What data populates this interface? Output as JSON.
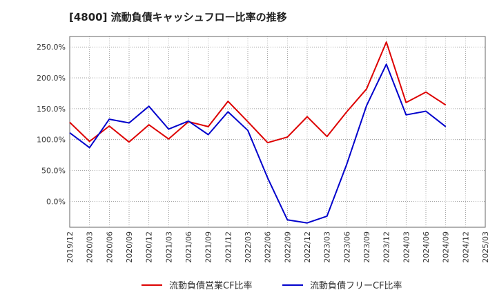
{
  "chart_data": {
    "type": "line",
    "title": "[4800]  流動負債キャッシュフロー比率の推移",
    "x": [
      "2019/12",
      "2020/03",
      "2020/06",
      "2020/09",
      "2020/12",
      "2021/03",
      "2021/06",
      "2021/09",
      "2021/12",
      "2022/03",
      "2022/06",
      "2022/09",
      "2022/12",
      "2023/03",
      "2023/06",
      "2023/09",
      "2023/12",
      "2024/03",
      "2024/06",
      "2024/09",
      "2024/12",
      "2025/03"
    ],
    "ylim": [
      -42,
      267
    ],
    "yticks": [
      0,
      50,
      100,
      150,
      200,
      250
    ],
    "ytick_labels": [
      "0.0%",
      "50.0%",
      "100.0%",
      "150.0%",
      "200.0%",
      "250.0%"
    ],
    "grid": true,
    "legend_position": "bottom",
    "series": [
      {
        "name": "流動負債営業CF比率",
        "color": "#dd0000",
        "values": [
          128,
          97,
          122,
          96,
          124,
          101,
          129,
          121,
          162,
          129,
          95,
          104,
          137,
          105,
          145,
          182,
          258,
          160,
          177,
          156,
          null,
          null
        ]
      },
      {
        "name": "流動負債フリーCF比率",
        "color": "#0000cc",
        "values": [
          111,
          87,
          133,
          127,
          154,
          117,
          130,
          108,
          145,
          115,
          38,
          -30,
          -35,
          -24,
          60,
          155,
          222,
          140,
          146,
          121,
          null,
          null
        ]
      }
    ]
  }
}
